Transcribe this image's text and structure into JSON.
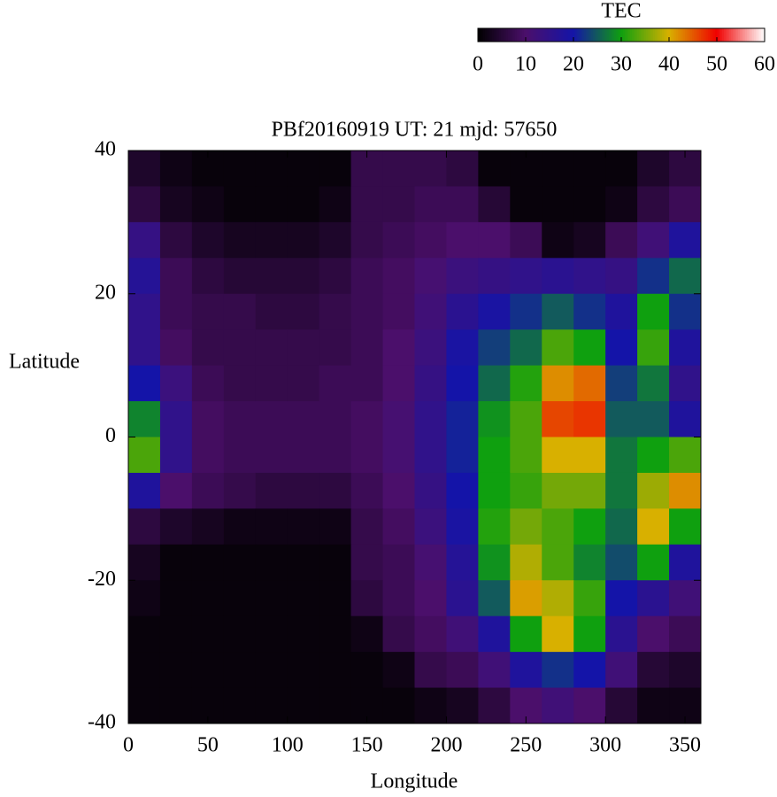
{
  "chart_data": {
    "type": "heatmap",
    "title": "PBf20160919  UT: 21  mjd: 57650",
    "xlabel": "Longitude",
    "ylabel": "Latitude",
    "colorbar_label": "TEC",
    "x": [
      10,
      30,
      50,
      70,
      90,
      110,
      130,
      150,
      170,
      190,
      210,
      230,
      250,
      270,
      290,
      310,
      330,
      350
    ],
    "y": [
      37.5,
      32.5,
      27.5,
      22.5,
      17.5,
      12.5,
      7.5,
      2.5,
      -2.5,
      -7.5,
      -12.5,
      -17.5,
      -22.5,
      -27.5,
      -32.5,
      -37.5
    ],
    "z": [
      [
        4,
        2,
        1,
        1,
        1,
        1,
        1,
        7,
        7,
        7,
        6,
        1,
        1,
        1,
        1,
        1,
        4,
        6
      ],
      [
        6,
        3,
        2,
        1,
        1,
        1,
        2,
        7,
        7,
        8,
        8,
        5,
        1,
        1,
        1,
        2,
        6,
        8
      ],
      [
        14,
        6,
        4,
        3,
        3,
        3,
        4,
        7,
        8,
        9,
        10,
        10,
        8,
        2,
        3,
        8,
        12,
        18
      ],
      [
        17,
        8,
        6,
        5,
        5,
        5,
        6,
        8,
        9,
        11,
        13,
        14,
        15,
        16,
        15,
        14,
        22,
        26
      ],
      [
        15,
        8,
        7,
        7,
        6,
        6,
        7,
        8,
        9,
        12,
        16,
        19,
        22,
        25,
        22,
        18,
        30,
        22
      ],
      [
        15,
        9,
        7,
        7,
        7,
        7,
        7,
        8,
        10,
        13,
        19,
        23,
        26,
        33,
        30,
        20,
        32,
        18
      ],
      [
        20,
        13,
        8,
        7,
        7,
        7,
        8,
        8,
        10,
        14,
        20,
        26,
        31,
        42,
        44,
        23,
        27,
        15
      ],
      [
        28,
        15,
        9,
        8,
        8,
        8,
        8,
        9,
        11,
        15,
        21,
        29,
        33,
        46,
        47,
        25,
        25,
        18
      ],
      [
        33,
        15,
        9,
        8,
        8,
        8,
        8,
        9,
        11,
        15,
        21,
        30,
        33,
        40,
        40,
        27,
        30,
        33
      ],
      [
        18,
        10,
        8,
        7,
        6,
        6,
        6,
        8,
        10,
        14,
        20,
        30,
        32,
        35,
        35,
        27,
        37,
        42
      ],
      [
        6,
        4,
        3,
        2,
        2,
        2,
        2,
        7,
        9,
        13,
        19,
        31,
        35,
        33,
        30,
        26,
        40,
        30
      ],
      [
        3,
        1,
        1,
        1,
        1,
        1,
        1,
        7,
        8,
        11,
        17,
        29,
        38,
        33,
        28,
        24,
        30,
        18
      ],
      [
        2,
        1,
        1,
        1,
        1,
        1,
        1,
        6,
        8,
        10,
        16,
        25,
        41,
        38,
        32,
        20,
        16,
        12
      ],
      [
        1,
        1,
        1,
        1,
        1,
        1,
        1,
        2,
        7,
        9,
        12,
        18,
        30,
        40,
        30,
        16,
        10,
        8
      ],
      [
        1,
        1,
        1,
        1,
        1,
        1,
        1,
        1,
        2,
        7,
        8,
        12,
        18,
        22,
        20,
        12,
        5,
        4
      ],
      [
        1,
        1,
        1,
        1,
        1,
        1,
        1,
        1,
        1,
        2,
        3,
        6,
        10,
        12,
        10,
        5,
        2,
        2
      ]
    ],
    "xlim": [
      0,
      360
    ],
    "ylim": [
      -40,
      40
    ],
    "xticks": [
      0,
      50,
      100,
      150,
      200,
      250,
      300,
      350
    ],
    "yticks": [
      -40,
      -20,
      0,
      20,
      40
    ],
    "clim": [
      0,
      60
    ],
    "cticks": [
      0,
      10,
      20,
      30,
      40,
      50,
      60
    ],
    "colormap": [
      "#000000",
      "#4b0f6b",
      "#1414a8",
      "#0fa00f",
      "#d8b000",
      "#f00000",
      "#ffffff"
    ]
  }
}
